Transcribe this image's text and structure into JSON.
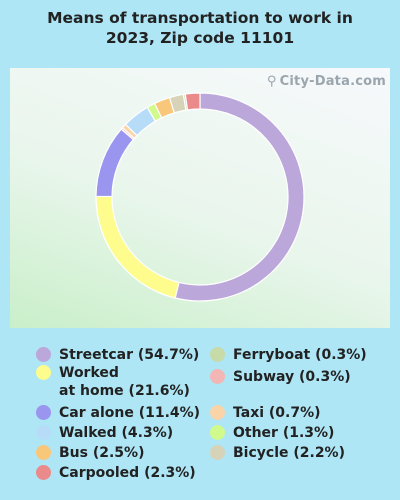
{
  "title": "Means of transportation to work in\n2023, Zip code 11101",
  "watermark": "City-Data.com",
  "chart_data": {
    "type": "donut",
    "title": "Means of transportation to work in 2023, Zip code 11101",
    "series": [
      {
        "name": "Streetcar",
        "label": "Streetcar (54.7%)",
        "value": 54.7,
        "color": "#bba7da"
      },
      {
        "name": "Worked at home",
        "label": "Worked\nat home (21.6%)",
        "value": 21.6,
        "color": "#fdfc8d"
      },
      {
        "name": "Car alone",
        "label": "Car alone (11.4%)",
        "value": 11.4,
        "color": "#9a95ef"
      },
      {
        "name": "Subway",
        "label": "Subway (0.3%)",
        "value": 0.3,
        "color": "#f2b6b5"
      },
      {
        "name": "Taxi",
        "label": "Taxi (0.7%)",
        "value": 0.7,
        "color": "#fad4a9"
      },
      {
        "name": "Walked",
        "label": "Walked (4.3%)",
        "value": 4.3,
        "color": "#b7dcf8"
      },
      {
        "name": "Other",
        "label": "Other (1.3%)",
        "value": 1.3,
        "color": "#d1fa8c"
      },
      {
        "name": "Bus",
        "label": "Bus (2.5%)",
        "value": 2.5,
        "color": "#f8c77a"
      },
      {
        "name": "Bicycle",
        "label": "Bicycle (2.2%)",
        "value": 2.2,
        "color": "#d7d3b8"
      },
      {
        "name": "Ferryboat",
        "label": "Ferryboat (0.3%)",
        "value": 0.3,
        "color": "#c6dba7"
      },
      {
        "name": "Carpooled",
        "label": "Carpooled (2.3%)",
        "value": 2.3,
        "color": "#ea8a8a"
      }
    ]
  },
  "legend": {
    "left": [
      {
        "label": "Streetcar (54.7%)",
        "color": "#bba7da"
      },
      {
        "label": "Worked\nat home (21.6%)",
        "color": "#fdfc8d"
      },
      {
        "label": "Car alone (11.4%)",
        "color": "#9a95ef"
      },
      {
        "label": "Walked (4.3%)",
        "color": "#b7dcf8"
      },
      {
        "label": "Bus (2.5%)",
        "color": "#f8c77a"
      },
      {
        "label": "Carpooled (2.3%)",
        "color": "#ea8a8a"
      }
    ],
    "right": [
      {
        "label": "Ferryboat (0.3%)",
        "color": "#c6dba7"
      },
      {
        "label": "Subway (0.3%)",
        "color": "#f2b6b5"
      },
      {
        "label": "Taxi (0.7%)",
        "color": "#fad4a9"
      },
      {
        "label": "Other (1.3%)",
        "color": "#d1fa8c"
      },
      {
        "label": "Bicycle (2.2%)",
        "color": "#d7d3b8"
      }
    ]
  }
}
